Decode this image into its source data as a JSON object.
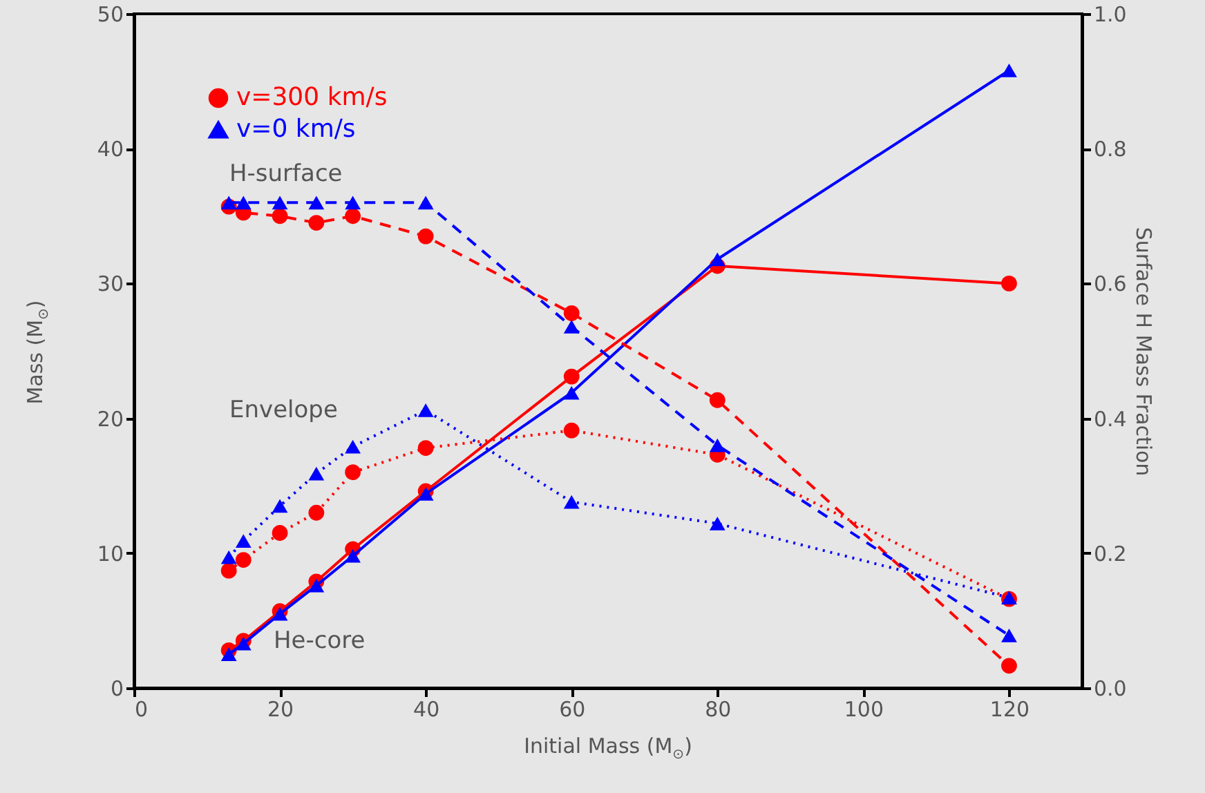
{
  "chart_data": {
    "type": "line",
    "xlabel": "Initial Mass (M$_{⊙}$)",
    "ylabel": "Mass (M$_{⊙}$)",
    "y2label": "Surface H Mass Fraction",
    "xlim": [
      0,
      130
    ],
    "xticks": [
      0,
      20,
      40,
      60,
      80,
      100,
      120
    ],
    "ylim": [
      0,
      50
    ],
    "yticks": [
      0,
      10,
      20,
      30,
      40,
      50
    ],
    "y2lim": [
      0,
      1
    ],
    "y2ticks": [
      {
        "value": 0,
        "label": "0.0"
      },
      0.2,
      0.4,
      0.6,
      0.8,
      {
        "value": 1,
        "label": "1.0"
      }
    ],
    "legend": "top left",
    "grid": false,
    "annotations": [
      "H-surface",
      "Envelope",
      "He-core"
    ],
    "series": [
      {
        "name": "v=300 km/s",
        "color": "#ff0000",
        "marker": "circle",
        "line_style": "solid",
        "x": [
          13,
          15,
          20,
          25,
          30,
          40,
          60,
          80,
          120
        ],
        "values": [
          2.8,
          3.5,
          5.7,
          7.9,
          10.3,
          14.6,
          23.1,
          31.3,
          30.0
        ]
      },
      {
        "name": "v=0 km/s",
        "color": "#0000ff",
        "marker": "triangle",
        "line_style": "solid",
        "x": [
          13,
          15,
          20,
          25,
          30,
          40,
          60,
          80,
          120
        ],
        "values": [
          2.5,
          3.3,
          5.5,
          7.6,
          9.8,
          14.4,
          21.9,
          31.8,
          45.8
        ]
      },
      {
        "color": "#ff0000",
        "marker": "circle",
        "line_style": "dashed",
        "axis": "y2",
        "x": [
          13,
          15,
          20,
          25,
          30,
          40,
          60,
          80,
          120
        ],
        "values": [
          0.714,
          0.705,
          0.7,
          0.69,
          0.7,
          0.67,
          0.556,
          0.427,
          0.033
        ]
      },
      {
        "color": "#0000ff",
        "marker": "triangle",
        "line_style": "dashed",
        "axis": "y2",
        "x": [
          13,
          15,
          20,
          25,
          30,
          40,
          60,
          80,
          120
        ],
        "values": [
          0.72,
          0.72,
          0.72,
          0.72,
          0.72,
          0.72,
          0.536,
          0.36,
          0.078
        ]
      },
      {
        "color": "#ff0000",
        "marker": "circle",
        "line_style": "dotted",
        "x": [
          13,
          15,
          20,
          25,
          30,
          40,
          60,
          80,
          120
        ],
        "values": [
          8.7,
          9.5,
          11.5,
          13.0,
          16.0,
          17.8,
          19.1,
          17.3,
          6.6
        ]
      },
      {
        "color": "#0000ff",
        "marker": "triangle",
        "line_style": "dotted",
        "x": [
          13,
          15,
          20,
          25,
          30,
          40,
          60,
          80,
          120
        ],
        "values": [
          9.7,
          10.9,
          13.5,
          15.9,
          17.9,
          20.6,
          13.8,
          12.2,
          6.7
        ]
      }
    ]
  }
}
